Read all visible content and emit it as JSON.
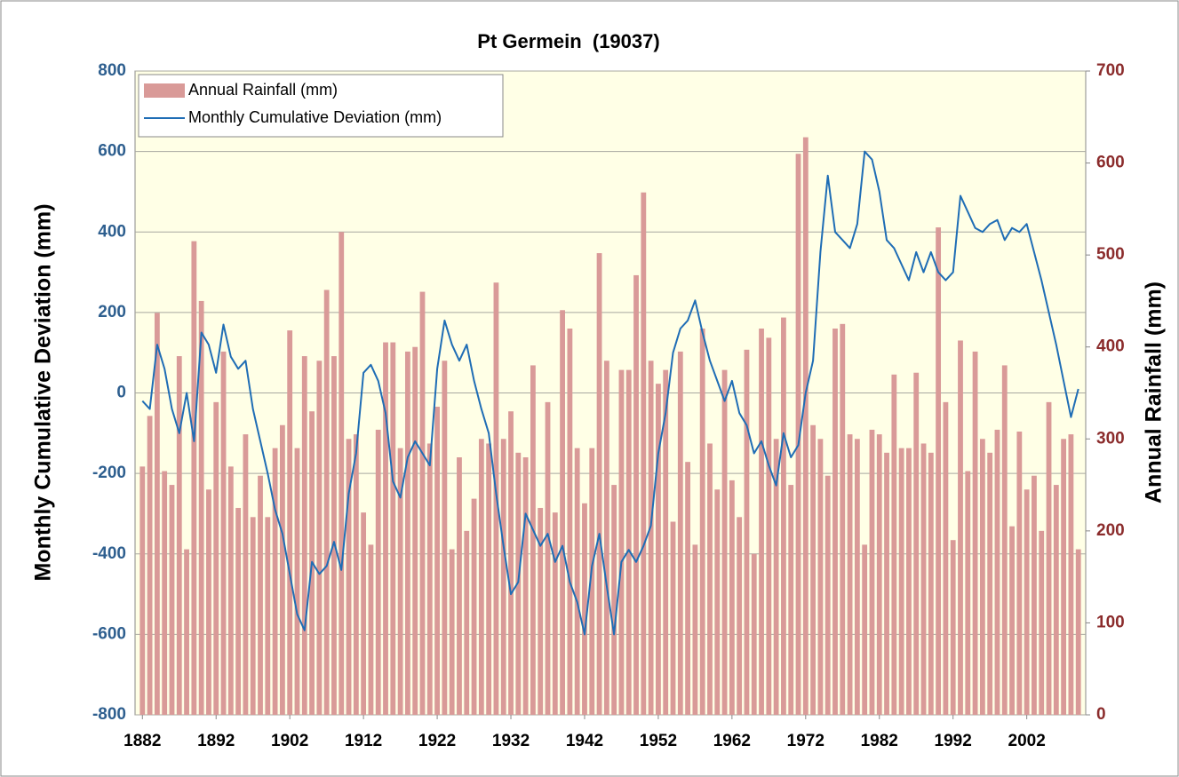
{
  "chart_data": {
    "type": "bar-line",
    "title": "Pt Germein  (19037)",
    "y_label": "Monthly Cumulative Deviation (mm)",
    "y2_label": "Annual Rainfall (mm)",
    "x": [
      1882,
      1883,
      1884,
      1885,
      1886,
      1887,
      1888,
      1889,
      1890,
      1891,
      1892,
      1893,
      1894,
      1895,
      1896,
      1897,
      1898,
      1899,
      1900,
      1901,
      1902,
      1903,
      1904,
      1905,
      1906,
      1907,
      1908,
      1909,
      1910,
      1911,
      1912,
      1913,
      1914,
      1915,
      1916,
      1917,
      1918,
      1919,
      1920,
      1921,
      1922,
      1923,
      1924,
      1925,
      1926,
      1927,
      1928,
      1929,
      1930,
      1931,
      1932,
      1933,
      1934,
      1935,
      1936,
      1937,
      1938,
      1939,
      1940,
      1941,
      1942,
      1943,
      1944,
      1945,
      1946,
      1947,
      1948,
      1949,
      1950,
      1951,
      1952,
      1953,
      1954,
      1955,
      1956,
      1957,
      1958,
      1959,
      1960,
      1961,
      1962,
      1963,
      1964,
      1965,
      1966,
      1967,
      1968,
      1969,
      1970,
      1971,
      1972,
      1973,
      1974,
      1975,
      1976,
      1977,
      1978,
      1979,
      1980,
      1981,
      1982,
      1983,
      1984,
      1985,
      1986,
      1987,
      1988,
      1989,
      1990,
      1991,
      1992,
      1993,
      1994,
      1995,
      1996,
      1997,
      1998,
      1999,
      2000,
      2001,
      2002,
      2003,
      2004,
      2005,
      2006,
      2007,
      2008,
      2009
    ],
    "series": [
      {
        "name": "Annual Rainfall (mm)",
        "color": "#d99a98",
        "axis": "y2",
        "kind": "bar",
        "values": [
          270,
          325,
          437,
          265,
          250,
          390,
          180,
          515,
          450,
          245,
          340,
          395,
          270,
          225,
          305,
          215,
          260,
          215,
          290,
          315,
          418,
          290,
          390,
          330,
          385,
          462,
          390,
          525,
          300,
          305,
          220,
          185,
          310,
          405,
          405,
          290,
          395,
          400,
          460,
          295,
          335,
          385,
          180,
          280,
          200,
          235,
          300,
          295,
          470,
          300,
          330,
          285,
          280,
          380,
          225,
          340,
          220,
          440,
          420,
          290,
          230,
          290,
          502,
          385,
          250,
          375,
          375,
          478,
          568,
          385,
          360,
          375,
          210,
          395,
          275,
          185,
          420,
          295,
          245,
          375,
          255,
          215,
          397,
          175,
          420,
          410,
          300,
          432,
          250,
          610,
          628,
          315,
          300,
          260,
          420,
          425,
          305,
          300,
          185,
          310,
          305,
          285,
          370,
          290,
          290,
          372,
          295,
          285,
          530,
          340,
          190,
          407,
          265,
          395,
          300,
          285,
          310,
          380,
          205,
          308,
          245,
          260,
          200,
          340,
          250,
          300,
          305,
          180
        ]
      },
      {
        "name": "Monthly Cumulative Deviation (mm)",
        "color": "#1f6db5",
        "axis": "y",
        "kind": "line",
        "values": [
          -20,
          -40,
          120,
          60,
          -40,
          -100,
          0,
          -120,
          150,
          120,
          50,
          170,
          90,
          60,
          80,
          -40,
          -120,
          -200,
          -290,
          -350,
          -450,
          -550,
          -590,
          -420,
          -450,
          -430,
          -370,
          -440,
          -250,
          -150,
          50,
          70,
          30,
          -50,
          -220,
          -260,
          -160,
          -120,
          -150,
          -180,
          60,
          180,
          120,
          80,
          120,
          30,
          -40,
          -100,
          -250,
          -380,
          -500,
          -470,
          -300,
          -340,
          -380,
          -350,
          -420,
          -380,
          -470,
          -520,
          -600,
          -430,
          -350,
          -480,
          -600,
          -420,
          -390,
          -420,
          -380,
          -330,
          -150,
          -50,
          100,
          160,
          180,
          230,
          150,
          80,
          30,
          -20,
          30,
          -50,
          -80,
          -150,
          -120,
          -180,
          -230,
          -100,
          -160,
          -130,
          0,
          80,
          350,
          540,
          400,
          380,
          360,
          420,
          600,
          580,
          500,
          380,
          360,
          320,
          280,
          350,
          300,
          350,
          300,
          280,
          300,
          490,
          450,
          410,
          400,
          420,
          430,
          380,
          410,
          400,
          420,
          350,
          280,
          200,
          120,
          30,
          -60,
          10
        ]
      }
    ],
    "xlim": [
      1881,
      2010
    ],
    "xticks": [
      1882,
      1892,
      1902,
      1912,
      1922,
      1932,
      1942,
      1952,
      1962,
      1972,
      1982,
      1992,
      2002
    ],
    "ylim": [
      -800,
      800
    ],
    "yticks": [
      -800,
      -600,
      -400,
      -200,
      0,
      200,
      400,
      600,
      800
    ],
    "y2lim": [
      0,
      700
    ],
    "y2ticks": [
      0,
      100,
      200,
      300,
      400,
      500,
      600,
      700
    ],
    "grid": true,
    "legend": "top-left"
  }
}
